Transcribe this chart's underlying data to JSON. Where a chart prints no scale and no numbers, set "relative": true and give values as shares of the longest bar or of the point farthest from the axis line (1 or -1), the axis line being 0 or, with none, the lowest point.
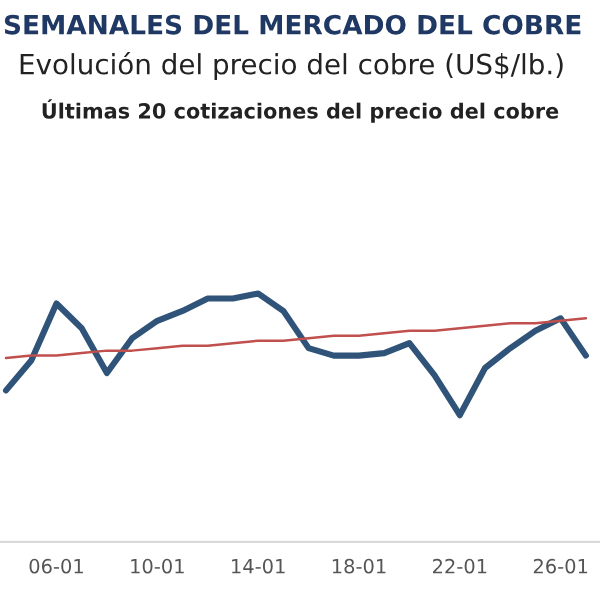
{
  "chart_data": {
    "type": "line",
    "title": "SEMANALES DEL MERCADO DEL COBRE",
    "subtitle": "Evolución del precio del cobre (US$/lb.)",
    "annotations": [
      "Últimas 20 cotizaciones del precio del cobre"
    ],
    "relative": true,
    "categories": [
      null,
      null,
      "06-01",
      null,
      null,
      null,
      "10-01",
      null,
      null,
      null,
      "14-01",
      null,
      null,
      null,
      "18-01",
      null,
      null,
      null,
      "22-01",
      null,
      null,
      null,
      "26-01",
      null
    ],
    "series": [
      {
        "color": "#2f5379",
        "values": [
          0.61,
          0.73,
          0.96,
          0.86,
          0.68,
          0.82,
          0.89,
          0.93,
          0.98,
          0.98,
          1,
          0.93,
          0.78,
          0.75,
          0.75,
          0.76,
          0.8,
          0.67,
          0.51,
          0.7,
          0.78,
          0.85,
          0.9,
          0.75
        ]
      },
      {
        "color": "#c0504d",
        "values": [
          0.74,
          0.75,
          0.75,
          0.76,
          0.77,
          0.77,
          0.78,
          0.79,
          0.79,
          0.8,
          0.81,
          0.81,
          0.82,
          0.83,
          0.83,
          0.84,
          0.85,
          0.85,
          0.86,
          0.87,
          0.88,
          0.88,
          0.89,
          0.9
        ]
      }
    ],
    "grid": false,
    "legend": false
  }
}
